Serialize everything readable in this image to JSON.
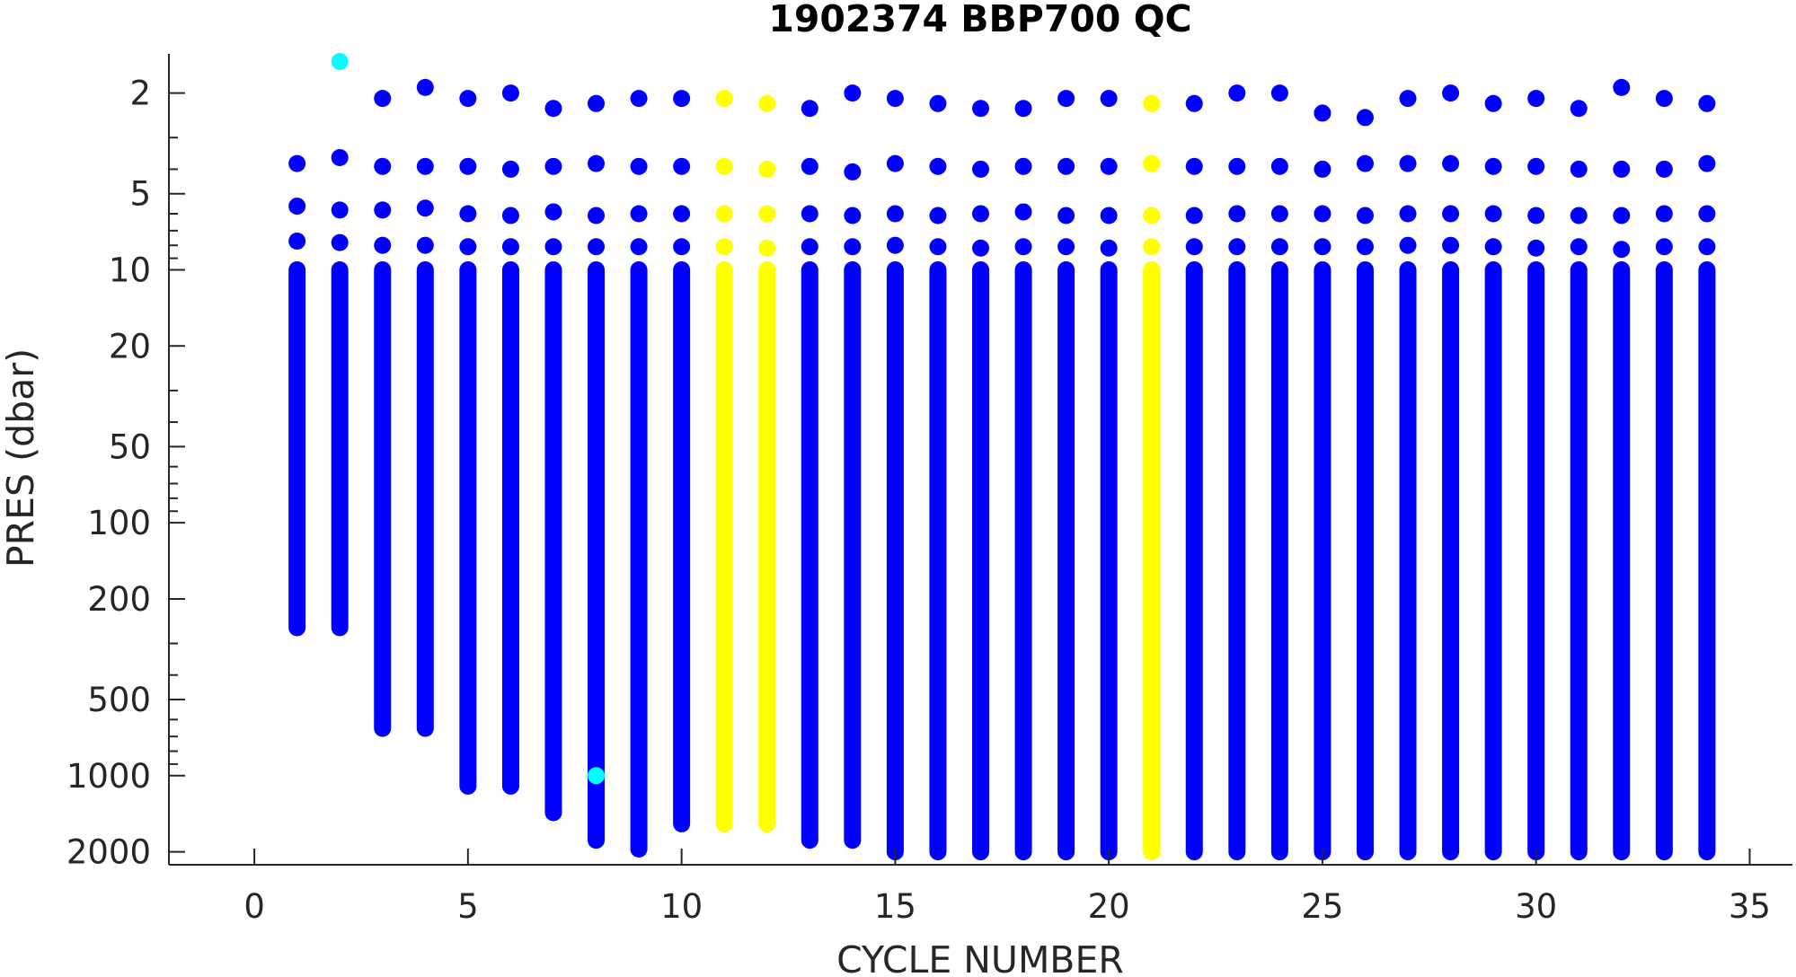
{
  "chart_data": {
    "type": "scatter",
    "title": "1902374 BBP700 QC",
    "xlabel": "CYCLE NUMBER",
    "ylabel": "PRES (dbar)",
    "xlim": [
      -2,
      36
    ],
    "ylim": [
      1.4,
      2250
    ],
    "y_scale": "log",
    "y_reversed": true,
    "grid": false,
    "legend": "none",
    "x_ticks": [
      0,
      5,
      10,
      15,
      20,
      25,
      30,
      35
    ],
    "x_tick_labels": [
      "0",
      "5",
      "10",
      "15",
      "20",
      "25",
      "30",
      "35"
    ],
    "y_ticks": [
      2,
      5,
      10,
      20,
      50,
      100,
      200,
      500,
      1000,
      2000
    ],
    "y_tick_labels": [
      "2",
      "5",
      "10",
      "20",
      "50",
      "100",
      "200",
      "500",
      "1000",
      "2000"
    ],
    "qc_colors": {
      "good": "#0000ff",
      "probably_good": "#00ffff",
      "probably_bad": "#ffff00"
    },
    "series": [
      {
        "cycle": 1,
        "qc": "good",
        "top_pressures": [
          3.8,
          5.6,
          7.7
        ],
        "column_start": 10,
        "column_end": 260
      },
      {
        "cycle": 2,
        "qc": "good",
        "top_pressures": [
          3.6,
          5.8,
          7.8
        ],
        "column_start": 10,
        "column_end": 260
      },
      {
        "cycle": 3,
        "qc": "good",
        "top_pressures": [
          2.1,
          3.9,
          5.8,
          8.0
        ],
        "column_start": 10,
        "column_end": 650
      },
      {
        "cycle": 4,
        "qc": "good",
        "top_pressures": [
          1.9,
          3.9,
          5.7,
          8.0
        ],
        "column_start": 10,
        "column_end": 650
      },
      {
        "cycle": 5,
        "qc": "good",
        "top_pressures": [
          2.1,
          3.9,
          6.0,
          8.1
        ],
        "column_start": 10,
        "column_end": 1100
      },
      {
        "cycle": 6,
        "qc": "good",
        "top_pressures": [
          2.0,
          4.0,
          6.1,
          8.1
        ],
        "column_start": 10,
        "column_end": 1100
      },
      {
        "cycle": 7,
        "qc": "good",
        "top_pressures": [
          2.3,
          3.9,
          5.9,
          8.1
        ],
        "column_start": 10,
        "column_end": 1400
      },
      {
        "cycle": 8,
        "qc": "good",
        "top_pressures": [
          2.2,
          3.8,
          6.1,
          8.1
        ],
        "column_start": 10,
        "column_end": 1800
      },
      {
        "cycle": 9,
        "qc": "good",
        "top_pressures": [
          2.1,
          3.9,
          6.0,
          8.1
        ],
        "column_start": 10,
        "column_end": 1950
      },
      {
        "cycle": 10,
        "qc": "good",
        "top_pressures": [
          2.1,
          3.9,
          6.0,
          8.1
        ],
        "column_start": 10,
        "column_end": 1550
      },
      {
        "cycle": 11,
        "qc": "probably_bad",
        "top_pressures": [
          2.1,
          3.9,
          6.0,
          8.1
        ],
        "column_start": 10,
        "column_end": 1550
      },
      {
        "cycle": 12,
        "qc": "probably_bad",
        "top_pressures": [
          2.2,
          4.0,
          6.0,
          8.2
        ],
        "column_start": 10,
        "column_end": 1550
      },
      {
        "cycle": 13,
        "qc": "good",
        "top_pressures": [
          2.3,
          3.9,
          6.0,
          8.1
        ],
        "column_start": 10,
        "column_end": 1800
      },
      {
        "cycle": 14,
        "qc": "good",
        "top_pressures": [
          2.0,
          4.1,
          6.1,
          8.1
        ],
        "column_start": 10,
        "column_end": 1800
      },
      {
        "cycle": 15,
        "qc": "good",
        "top_pressures": [
          2.1,
          3.8,
          6.0,
          8.0
        ],
        "column_start": 10,
        "column_end": 2000
      },
      {
        "cycle": 16,
        "qc": "good",
        "top_pressures": [
          2.2,
          3.9,
          6.1,
          8.1
        ],
        "column_start": 10,
        "column_end": 2000
      },
      {
        "cycle": 17,
        "qc": "good",
        "top_pressures": [
          2.3,
          4.0,
          6.0,
          8.2
        ],
        "column_start": 10,
        "column_end": 2000
      },
      {
        "cycle": 18,
        "qc": "good",
        "top_pressures": [
          2.3,
          3.9,
          5.9,
          8.1
        ],
        "column_start": 10,
        "column_end": 2000
      },
      {
        "cycle": 19,
        "qc": "good",
        "top_pressures": [
          2.1,
          3.9,
          6.1,
          8.1
        ],
        "column_start": 10,
        "column_end": 2000
      },
      {
        "cycle": 20,
        "qc": "good",
        "top_pressures": [
          2.1,
          3.9,
          6.1,
          8.2
        ],
        "column_start": 10,
        "column_end": 2000
      },
      {
        "cycle": 21,
        "qc": "probably_bad",
        "top_pressures": [
          2.2,
          3.8,
          6.1,
          8.1
        ],
        "column_start": 10,
        "column_end": 2000
      },
      {
        "cycle": 22,
        "qc": "good",
        "top_pressures": [
          2.2,
          3.9,
          6.1,
          8.1
        ],
        "column_start": 10,
        "column_end": 2000
      },
      {
        "cycle": 23,
        "qc": "good",
        "top_pressures": [
          2.0,
          3.9,
          6.0,
          8.1
        ],
        "column_start": 10,
        "column_end": 2000
      },
      {
        "cycle": 24,
        "qc": "good",
        "top_pressures": [
          2.0,
          3.9,
          6.0,
          8.1
        ],
        "column_start": 10,
        "column_end": 2000
      },
      {
        "cycle": 25,
        "qc": "good",
        "top_pressures": [
          2.4,
          4.0,
          6.0,
          8.1
        ],
        "column_start": 10,
        "column_end": 2000
      },
      {
        "cycle": 26,
        "qc": "good",
        "top_pressures": [
          2.5,
          3.8,
          6.1,
          8.1
        ],
        "column_start": 10,
        "column_end": 2000
      },
      {
        "cycle": 27,
        "qc": "good",
        "top_pressures": [
          2.1,
          3.8,
          6.0,
          8.0
        ],
        "column_start": 10,
        "column_end": 2000
      },
      {
        "cycle": 28,
        "qc": "good",
        "top_pressures": [
          2.0,
          3.8,
          6.0,
          8.0
        ],
        "column_start": 10,
        "column_end": 2000
      },
      {
        "cycle": 29,
        "qc": "good",
        "top_pressures": [
          2.2,
          3.9,
          6.0,
          8.1
        ],
        "column_start": 10,
        "column_end": 2000
      },
      {
        "cycle": 30,
        "qc": "good",
        "top_pressures": [
          2.1,
          3.9,
          6.1,
          8.2
        ],
        "column_start": 10,
        "column_end": 2000
      },
      {
        "cycle": 31,
        "qc": "good",
        "top_pressures": [
          2.3,
          4.0,
          6.1,
          8.1
        ],
        "column_start": 10,
        "column_end": 2000
      },
      {
        "cycle": 32,
        "qc": "good",
        "top_pressures": [
          1.9,
          4.0,
          6.1,
          8.3
        ],
        "column_start": 10,
        "column_end": 2000
      },
      {
        "cycle": 33,
        "qc": "good",
        "top_pressures": [
          2.1,
          4.0,
          6.0,
          8.1
        ],
        "column_start": 10,
        "column_end": 2000
      },
      {
        "cycle": 34,
        "qc": "good",
        "top_pressures": [
          2.2,
          3.8,
          6.0,
          8.1
        ],
        "column_start": 10,
        "column_end": 2000
      }
    ],
    "outliers": [
      {
        "cycle": 2,
        "pressure": 1.5,
        "qc": "probably_good"
      },
      {
        "cycle": 8,
        "pressure": 1000,
        "qc": "probably_good"
      }
    ]
  }
}
